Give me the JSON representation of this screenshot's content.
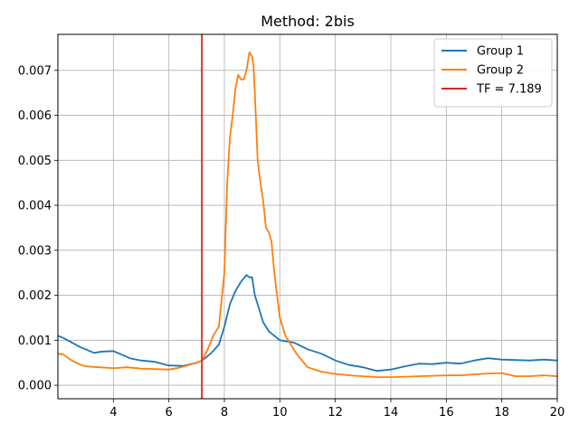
{
  "chart_data": {
    "type": "line",
    "title": "Method: 2bis",
    "xlabel": "",
    "ylabel": "",
    "xlim": [
      2.0,
      20.0
    ],
    "ylim": [
      -0.0003,
      0.0078
    ],
    "x_ticks": [
      4,
      6,
      8,
      10,
      12,
      14,
      16,
      18,
      20
    ],
    "x_tick_labels": [
      "4",
      "6",
      "8",
      "10",
      "12",
      "14",
      "16",
      "18",
      "20"
    ],
    "y_ticks": [
      0.0,
      0.001,
      0.002,
      0.003,
      0.004,
      0.005,
      0.006,
      0.007
    ],
    "y_tick_labels": [
      "0.000",
      "0.001",
      "0.002",
      "0.003",
      "0.004",
      "0.005",
      "0.006",
      "0.007"
    ],
    "grid": true,
    "legend_position": "top-right",
    "series": [
      {
        "name": "Group 1",
        "color": "#1f77b4",
        "x": [
          2.0,
          2.2,
          2.5,
          2.8,
          3.0,
          3.3,
          3.6,
          4.0,
          4.3,
          4.6,
          5.0,
          5.5,
          6.0,
          6.5,
          7.0,
          7.2,
          7.5,
          7.8,
          8.0,
          8.2,
          8.4,
          8.6,
          8.8,
          8.9,
          9.0,
          9.1,
          9.2,
          9.4,
          9.6,
          9.8,
          10.0,
          10.5,
          11.0,
          11.5,
          12.0,
          12.5,
          13.0,
          13.5,
          14.0,
          14.5,
          15.0,
          15.5,
          16.0,
          16.5,
          17.0,
          17.5,
          18.0,
          18.5,
          19.0,
          19.5,
          20.0
        ],
        "y": [
          0.0011,
          0.00105,
          0.00095,
          0.00085,
          0.0008,
          0.00072,
          0.00075,
          0.00076,
          0.00068,
          0.0006,
          0.00055,
          0.00052,
          0.00044,
          0.00043,
          0.0005,
          0.00055,
          0.0007,
          0.0009,
          0.0013,
          0.0018,
          0.0021,
          0.0023,
          0.00245,
          0.0024,
          0.0024,
          0.002,
          0.0018,
          0.0014,
          0.0012,
          0.0011,
          0.001,
          0.00095,
          0.0008,
          0.0007,
          0.00055,
          0.00045,
          0.0004,
          0.00032,
          0.00035,
          0.00042,
          0.00048,
          0.00047,
          0.0005,
          0.00048,
          0.00055,
          0.0006,
          0.00057,
          0.00056,
          0.00055,
          0.00057,
          0.00055
        ]
      },
      {
        "name": "Group 2",
        "color": "#ff7f0e",
        "x": [
          2.0,
          2.2,
          2.5,
          2.8,
          3.0,
          3.5,
          4.0,
          4.5,
          5.0,
          5.5,
          6.0,
          6.3,
          6.6,
          7.0,
          7.2,
          7.4,
          7.6,
          7.8,
          8.0,
          8.1,
          8.2,
          8.3,
          8.4,
          8.5,
          8.6,
          8.7,
          8.8,
          8.9,
          9.0,
          9.05,
          9.1,
          9.2,
          9.3,
          9.4,
          9.5,
          9.6,
          9.7,
          9.8,
          10.0,
          10.2,
          10.4,
          10.6,
          11.0,
          11.5,
          12.0,
          12.5,
          13.0,
          13.5,
          14.0,
          15.0,
          16.0,
          16.5,
          17.0,
          17.5,
          18.0,
          18.5,
          19.0,
          19.5,
          20.0
        ],
        "y": [
          0.0007,
          0.00068,
          0.00055,
          0.00046,
          0.00042,
          0.0004,
          0.00038,
          0.0004,
          0.00037,
          0.00036,
          0.00035,
          0.00038,
          0.00043,
          0.0005,
          0.00055,
          0.0008,
          0.0011,
          0.0013,
          0.0025,
          0.0045,
          0.0055,
          0.006,
          0.0066,
          0.0069,
          0.0068,
          0.0068,
          0.007,
          0.0074,
          0.0073,
          0.0071,
          0.0065,
          0.005,
          0.0045,
          0.0041,
          0.0035,
          0.0034,
          0.0032,
          0.0025,
          0.0015,
          0.0011,
          0.0009,
          0.0007,
          0.0004,
          0.0003,
          0.00025,
          0.00022,
          0.0002,
          0.00018,
          0.00018,
          0.0002,
          0.00022,
          0.00022,
          0.00024,
          0.00026,
          0.00027,
          0.0002,
          0.0002,
          0.00022,
          0.0002
        ]
      },
      {
        "name": "TF = 7.189",
        "color": "#d62728",
        "type": "vline",
        "x_value": 7.189
      }
    ]
  }
}
